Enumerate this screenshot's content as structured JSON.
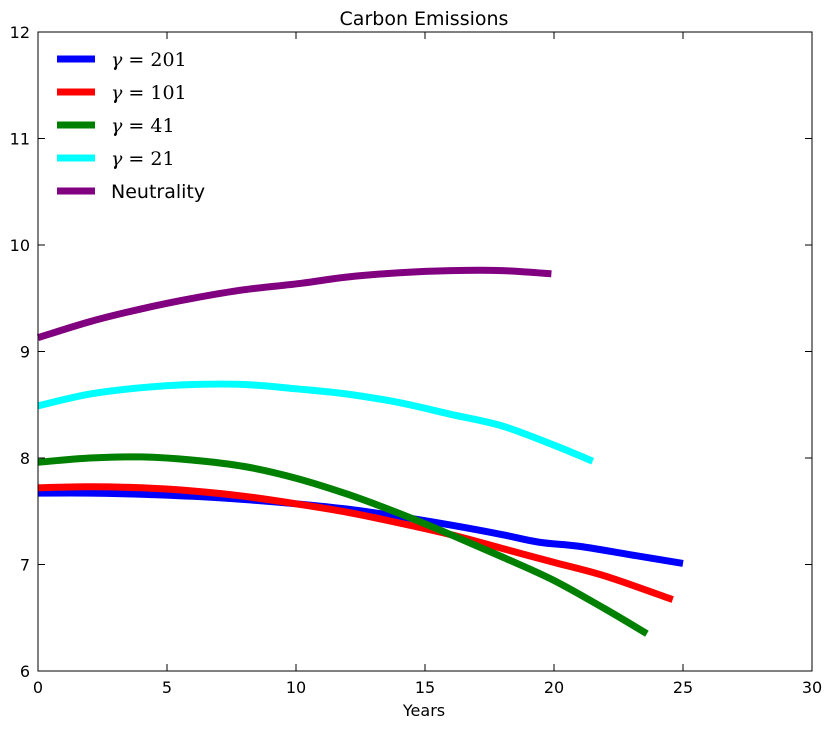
{
  "chart_data": {
    "type": "line",
    "title": "Carbon Emissions",
    "xlabel": "Years",
    "ylabel": "",
    "xlim": [
      0,
      30
    ],
    "ylim": [
      6,
      12
    ],
    "xticks": [
      "0",
      "5",
      "10",
      "15",
      "20",
      "25",
      "30"
    ],
    "yticks": [
      "6",
      "7",
      "8",
      "9",
      "10",
      "11",
      "12"
    ],
    "grid": false,
    "legend_position": "top-left",
    "series": [
      {
        "name": "γ = 201",
        "legend_prefix": "γ",
        "legend_suffix": " = 201",
        "color": "#0000ff",
        "x": [
          0,
          2,
          4,
          6,
          8,
          10,
          12,
          14,
          16,
          18,
          19.4,
          21,
          23,
          25
        ],
        "y": [
          7.67,
          7.67,
          7.66,
          7.64,
          7.61,
          7.57,
          7.52,
          7.45,
          7.37,
          7.28,
          7.21,
          7.17,
          7.09,
          7.01
        ]
      },
      {
        "name": "γ = 101",
        "legend_prefix": "γ",
        "legend_suffix": " = 101",
        "color": "#ff0000",
        "x": [
          0,
          2,
          4,
          6,
          8,
          10,
          12,
          14,
          16,
          18,
          20,
          22,
          24.6
        ],
        "y": [
          7.72,
          7.73,
          7.72,
          7.69,
          7.64,
          7.57,
          7.49,
          7.39,
          7.28,
          7.15,
          7.02,
          6.89,
          6.67
        ]
      },
      {
        "name": "γ = 41",
        "legend_prefix": "γ",
        "legend_suffix": " = 41",
        "color": "#008000",
        "x": [
          0,
          2,
          4,
          6,
          8,
          10,
          12,
          14,
          16,
          18,
          20,
          22,
          23.6
        ],
        "y": [
          7.96,
          8.0,
          8.01,
          7.98,
          7.92,
          7.81,
          7.66,
          7.48,
          7.28,
          7.07,
          6.85,
          6.58,
          6.35
        ]
      },
      {
        "name": "γ = 21",
        "legend_prefix": "γ",
        "legend_suffix": " = 21",
        "color": "#00ffff",
        "x": [
          0,
          2,
          4,
          6,
          8,
          10,
          12,
          14,
          16,
          18,
          20,
          21.5
        ],
        "y": [
          8.49,
          8.6,
          8.66,
          8.69,
          8.69,
          8.65,
          8.6,
          8.52,
          8.41,
          8.3,
          8.12,
          7.97
        ]
      },
      {
        "name": "Neutrality",
        "legend_prefix": "",
        "legend_suffix": "Neutrality",
        "color": "#800080",
        "x": [
          0,
          2,
          4,
          6,
          8,
          10.2,
          12,
          14,
          16,
          18,
          19.9
        ],
        "y": [
          9.13,
          9.28,
          9.4,
          9.5,
          9.58,
          9.64,
          9.7,
          9.74,
          9.76,
          9.76,
          9.73
        ]
      }
    ]
  }
}
